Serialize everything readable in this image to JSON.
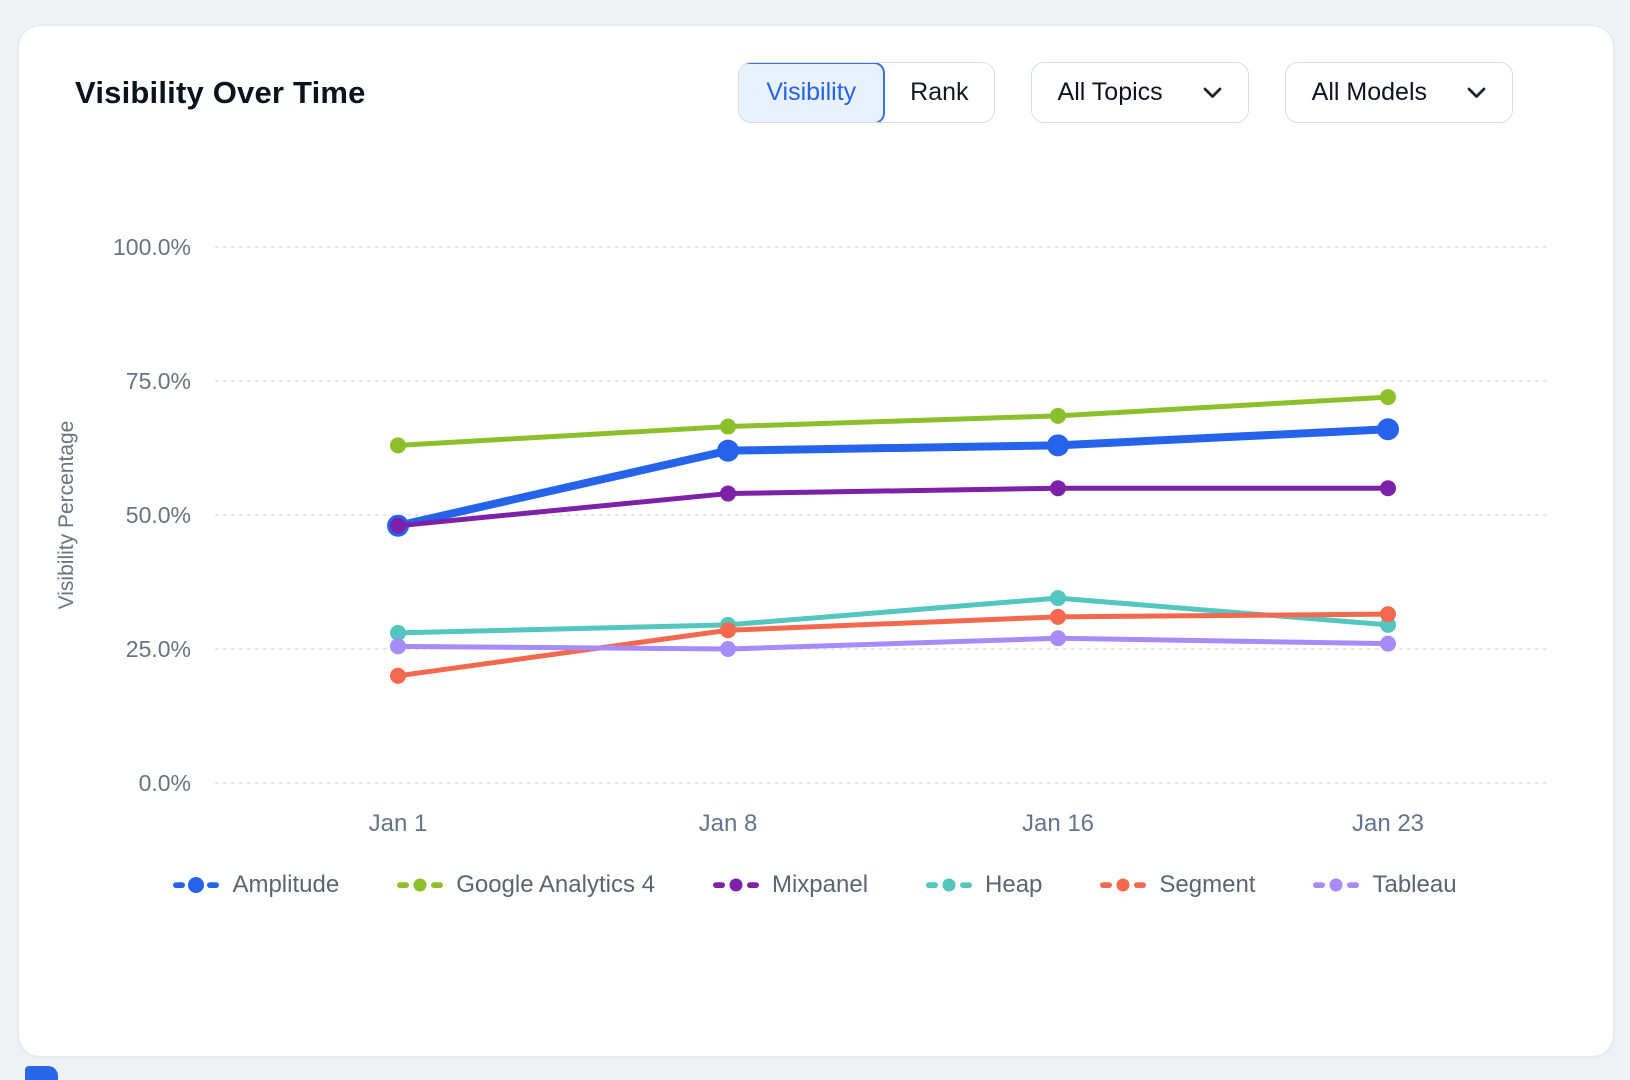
{
  "window": {
    "background": "#eff1f4",
    "card_background": "#ffffff"
  },
  "header": {
    "title": "Visibility Over Time",
    "view_toggle": {
      "options": [
        {
          "label": "Visibility",
          "selected": true
        },
        {
          "label": "Rank",
          "selected": false
        }
      ]
    },
    "filters": [
      {
        "label": "All Topics"
      },
      {
        "label": "All Models"
      }
    ]
  },
  "chart_data": {
    "type": "line",
    "title": "Visibility Over Time",
    "x": [
      "Jan 1",
      "Jan 8",
      "Jan 16",
      "Jan 23"
    ],
    "series": [
      {
        "name": "Amplitude",
        "color": "#2563eb",
        "values": [
          48,
          62,
          63,
          66
        ],
        "emphasis": true
      },
      {
        "name": "Google Analytics 4",
        "color": "#8bc02c",
        "values": [
          63,
          66.5,
          68.5,
          72
        ],
        "emphasis": false
      },
      {
        "name": "Mixpanel",
        "color": "#7c21a8",
        "values": [
          48,
          54,
          55,
          55
        ],
        "emphasis": false
      },
      {
        "name": "Heap",
        "color": "#53c6c0",
        "values": [
          28,
          29.5,
          34.5,
          29.5
        ],
        "emphasis": false
      },
      {
        "name": "Segment",
        "color": "#f4694e",
        "values": [
          20,
          28.5,
          31,
          31.5
        ],
        "emphasis": false
      },
      {
        "name": "Tableau",
        "color": "#a78bfa",
        "values": [
          25.5,
          25,
          27,
          26
        ],
        "emphasis": false
      }
    ],
    "xlabel": "",
    "ylabel": "Visibility Percentage",
    "ylim": [
      0,
      100
    ],
    "yticks": [
      {
        "value": 100,
        "label": "100.0%"
      },
      {
        "value": 75,
        "label": "75.0%"
      },
      {
        "value": 50,
        "label": "50.0%"
      },
      {
        "value": 25,
        "label": "25.0%"
      },
      {
        "value": 0,
        "label": "0.0%"
      }
    ],
    "grid": "horizontal-dotted",
    "grid_color": "#e4e7ec",
    "tick_label_color": "#6b7280",
    "legend_position": "bottom"
  }
}
